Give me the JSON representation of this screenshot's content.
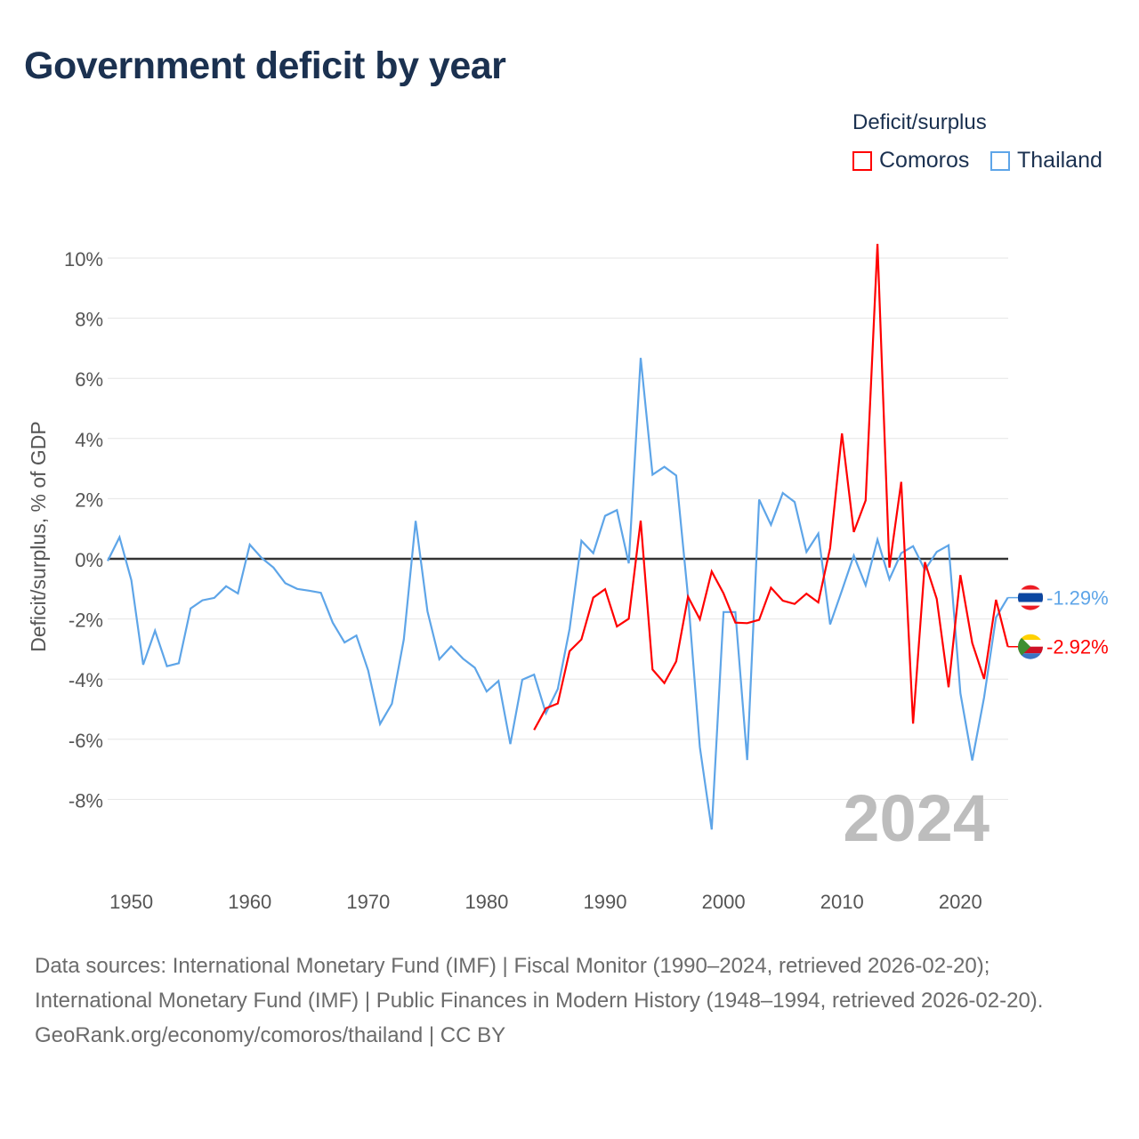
{
  "title": "Government deficit by year",
  "legend": {
    "title": "Deficit/surplus",
    "items": [
      {
        "name": "Comoros",
        "color": "#ff0000"
      },
      {
        "name": "Thailand",
        "color": "#5ea5e8"
      }
    ]
  },
  "footer": {
    "sources": "Data sources: International Monetary Fund (IMF) | Fiscal Monitor (1990–2024, retrieved 2026-02-20); International Monetary Fund (IMF) | Public Finances in Modern History (1948–1994, retrieved 2026-02-20).",
    "credit": "GeoRank.org/economy/comoros/thailand | CC BY"
  },
  "chart_data": {
    "type": "line",
    "title": "Government deficit by year",
    "xlabel": "",
    "ylabel": "Deficit/surplus, % of GDP",
    "xlim": [
      1948,
      2024
    ],
    "ylim": [
      -10,
      10.5
    ],
    "x_ticks": [
      1950,
      1960,
      1970,
      1980,
      1990,
      2000,
      2010,
      2020
    ],
    "y_ticks": [
      10,
      8,
      6,
      4,
      2,
      0,
      -2,
      -4,
      -6,
      -8
    ],
    "y_tick_labels": [
      "10%",
      "8%",
      "6%",
      "4%",
      "2%",
      "0%",
      "-2%",
      "-4%",
      "-6%",
      "-8%"
    ],
    "watermark_year": "2024",
    "legend_position": "top-right",
    "grid": true,
    "series": [
      {
        "name": "Thailand",
        "color": "#5ea5e8",
        "end_label": "-1.29%",
        "start_year": 1948,
        "values": [
          -0.07,
          0.72,
          -0.71,
          -3.52,
          -2.39,
          -3.57,
          -3.47,
          -1.65,
          -1.38,
          -1.3,
          -0.91,
          -1.15,
          0.47,
          0.03,
          -0.29,
          -0.81,
          -1.0,
          -1.06,
          -1.13,
          -2.12,
          -2.78,
          -2.55,
          -3.72,
          -5.49,
          -4.82,
          -2.68,
          1.26,
          -1.75,
          -3.34,
          -2.91,
          -3.32,
          -3.62,
          -4.41,
          -4.06,
          -6.16,
          -4.02,
          -3.85,
          -5.13,
          -4.33,
          -2.33,
          0.6,
          0.19,
          1.43,
          1.62,
          -0.15,
          6.68,
          2.8,
          3.06,
          2.77,
          -1.26,
          -6.26,
          -9.0,
          -1.77,
          -1.77,
          -6.69,
          1.97,
          1.13,
          2.19,
          1.89,
          0.23,
          0.84,
          -2.18,
          -1.05,
          0.11,
          -0.88,
          0.64,
          -0.68,
          0.19,
          0.42,
          -0.37,
          0.23,
          0.45,
          -4.47,
          -6.7,
          -4.61,
          -1.95,
          -1.29
        ]
      },
      {
        "name": "Comoros",
        "color": "#ff0000",
        "end_label": "-2.92%",
        "start_year": 1984,
        "values": [
          -5.69,
          -4.97,
          -4.81,
          -3.07,
          -2.68,
          -1.29,
          -1.01,
          -2.25,
          -1.99,
          1.27,
          -3.68,
          -4.13,
          -3.41,
          -1.26,
          -2.01,
          -0.42,
          -1.15,
          -2.12,
          -2.14,
          -2.03,
          -0.96,
          -1.39,
          -1.5,
          -1.16,
          -1.45,
          0.36,
          4.17,
          0.89,
          1.94,
          10.47,
          -0.29,
          2.56,
          -5.48,
          -0.11,
          -1.33,
          -4.27,
          -0.54,
          -2.8,
          -3.99,
          -1.36,
          -2.92
        ]
      }
    ]
  }
}
